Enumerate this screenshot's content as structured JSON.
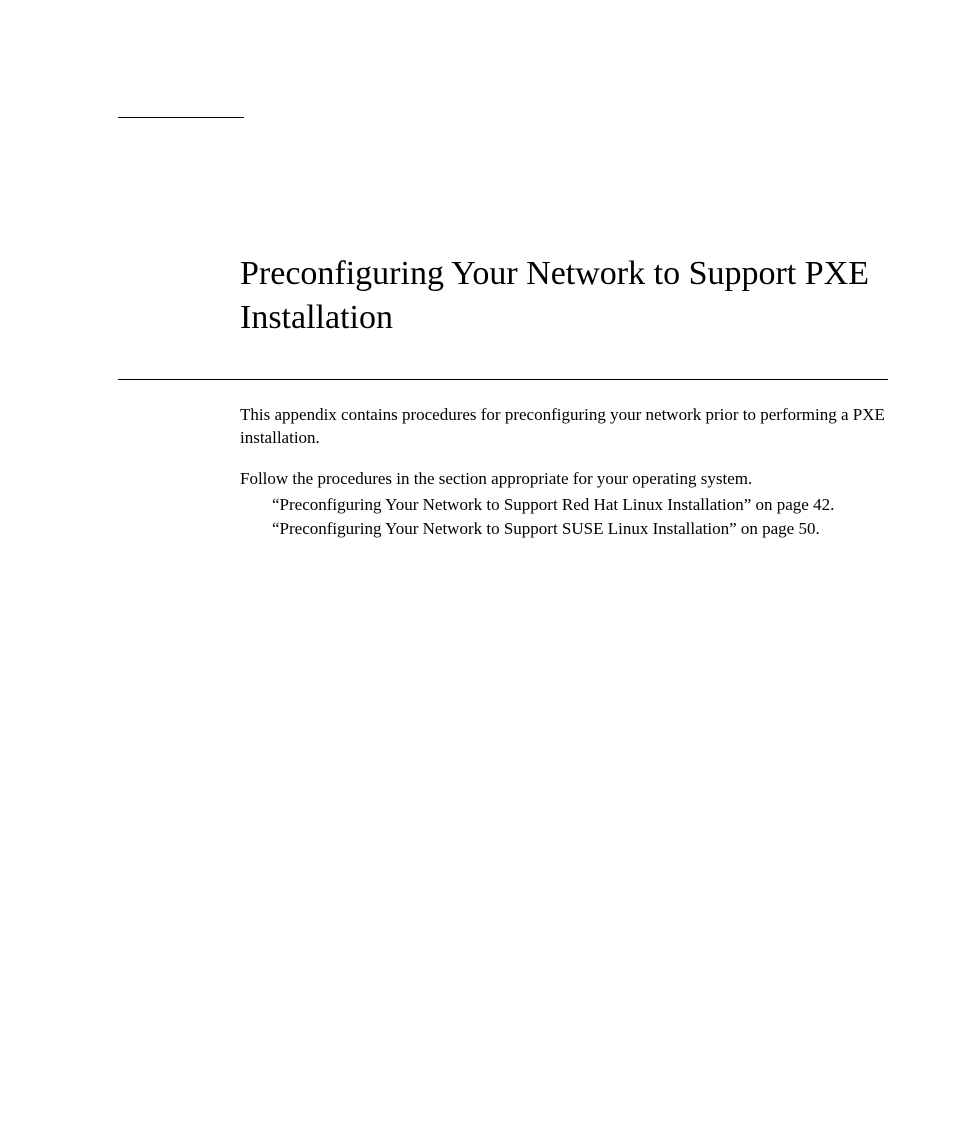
{
  "title": "Preconfiguring Your Network to Support PXE Installation",
  "intro": "This appendix contains procedures for preconfiguring your network prior to performing a PXE installation.",
  "instruction": "Follow the procedures in the section appropriate for your operating system.",
  "links": [
    "“Preconfiguring Your Network to Support Red Hat Linux Installation” on page 42.",
    "“Preconfiguring Your Network to Support SUSE Linux Installation” on page 50."
  ]
}
